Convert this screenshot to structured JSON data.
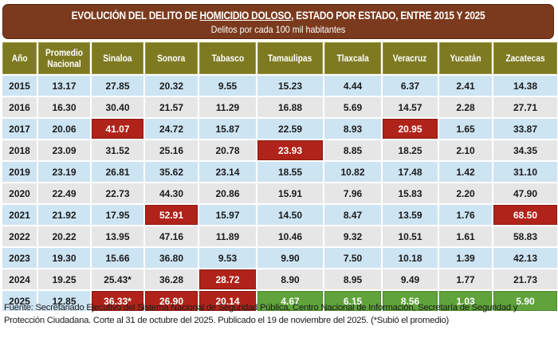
{
  "banner": {
    "title_prefix": "EVOLUCIÓN DEL DELITO DE ",
    "title_highlight": "HOMICIDIO DOLOSO",
    "title_suffix": ", ESTADO POR ESTADO, ENTRE 2015 Y 2025",
    "subtitle": "Delitos por cada 100 mil habitantes",
    "background_color": "#7b3a1d"
  },
  "table": {
    "header_color": "#7e7a22",
    "highlight_colors": {
      "red": "#b0231a",
      "green": "#5fa33a"
    },
    "columns": [
      "Año",
      "Promedio Nacional",
      "Sinaloa",
      "Sonora",
      "Tabasco",
      "Tamaulipas",
      "Tlaxcala",
      "Veracruz",
      "Yucatán",
      "Zacatecas"
    ],
    "rows": [
      {
        "cells": [
          "2015",
          "13.17",
          "27.85",
          "20.32",
          "9.55",
          "15.23",
          "4.44",
          "6.37",
          "2.41",
          "14.38"
        ],
        "highlights": {}
      },
      {
        "cells": [
          "2016",
          "16.30",
          "30.40",
          "21.57",
          "11.29",
          "16.88",
          "5.69",
          "14.57",
          "2.28",
          "27.71"
        ],
        "highlights": {}
      },
      {
        "cells": [
          "2017",
          "20.06",
          "41.07",
          "24.72",
          "15.87",
          "22.59",
          "8.93",
          "20.95",
          "1.65",
          "33.87"
        ],
        "highlights": {
          "2": "red",
          "7": "red"
        }
      },
      {
        "cells": [
          "2018",
          "23.09",
          "31.52",
          "25.16",
          "20.78",
          "23.93",
          "8.85",
          "18.25",
          "2.10",
          "34.35"
        ],
        "highlights": {
          "5": "red"
        }
      },
      {
        "cells": [
          "2019",
          "23.19",
          "26.81",
          "35.62",
          "23.14",
          "18.55",
          "10.82",
          "17.48",
          "1.42",
          "31.10"
        ],
        "highlights": {}
      },
      {
        "cells": [
          "2020",
          "22.49",
          "22.73",
          "44.30",
          "20.86",
          "15.91",
          "7.96",
          "15.83",
          "2.20",
          "47.90"
        ],
        "highlights": {}
      },
      {
        "cells": [
          "2021",
          "21.92",
          "17.95",
          "52.91",
          "15.97",
          "14.50",
          "8.47",
          "13.59",
          "1.76",
          "68.50"
        ],
        "highlights": {
          "3": "red",
          "9": "red"
        }
      },
      {
        "cells": [
          "2022",
          "20.22",
          "13.95",
          "47.16",
          "11.89",
          "10.46",
          "9.32",
          "10.51",
          "1.61",
          "58.83"
        ],
        "highlights": {}
      },
      {
        "cells": [
          "2023",
          "19.30",
          "15.66",
          "36.80",
          "9.53",
          "9.90",
          "7.50",
          "10.18",
          "1.39",
          "42.13"
        ],
        "highlights": {}
      },
      {
        "cells": [
          "2024",
          "19.25",
          "25.43*",
          "36.28",
          "28.72",
          "8.90",
          "8.95",
          "9.49",
          "1.77",
          "21.73"
        ],
        "highlights": {
          "4": "red"
        }
      },
      {
        "cells": [
          "2025",
          "12.85",
          "36.33*",
          "26.90",
          "20.14",
          "4.67",
          "6.15",
          "8.56",
          "1.03",
          "5.90"
        ],
        "highlights": {
          "2": "red",
          "3": "red",
          "4": "red",
          "5": "green",
          "6": "green",
          "7": "green",
          "8": "green",
          "9": "green"
        }
      }
    ]
  },
  "footer": {
    "source": "Fuente: Secretariado Ejecutivo del Sistema Nacional de Seguridad Pública, Centro Nacional de Información, Secretaría de Seguridad y Protección Ciudadana. Corte al 31 de octubre del 2025. Publicado el 19 de noviembre del 2025. (*Subió el promedio)"
  }
}
